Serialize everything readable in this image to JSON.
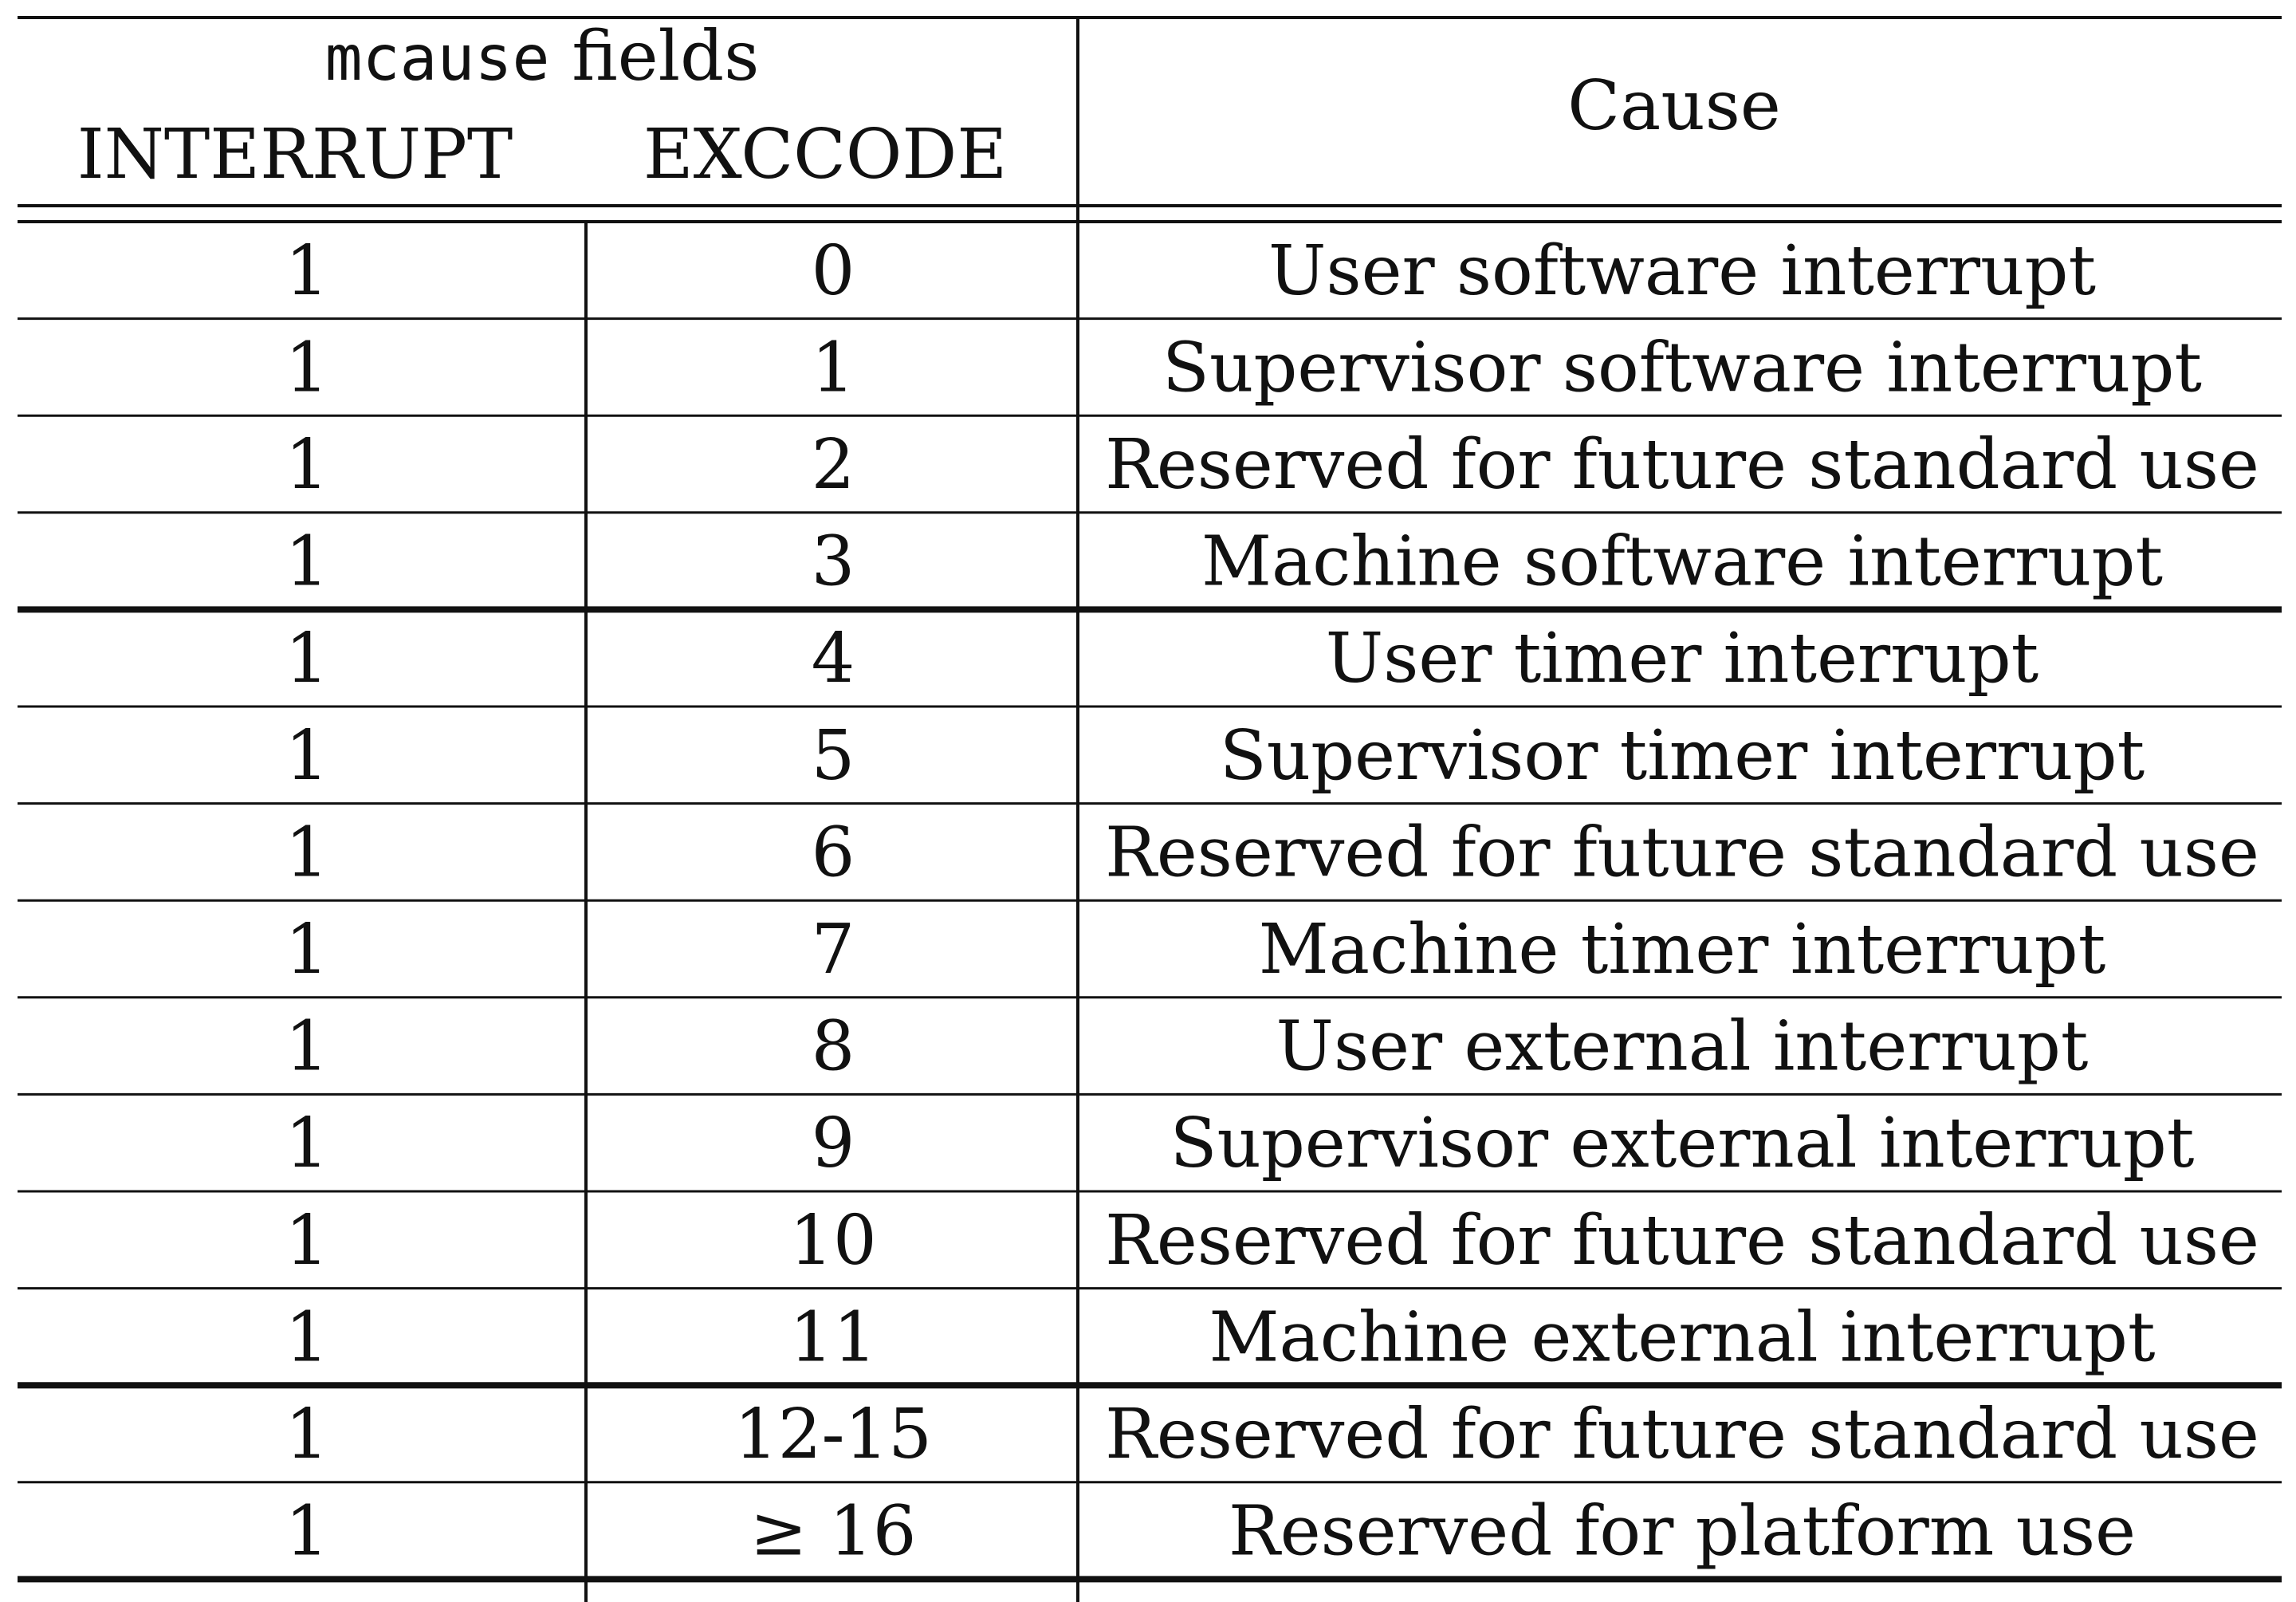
{
  "header": {
    "fields_code": "mcause",
    "fields_word": "fields",
    "col_interrupt": "INTERRUPT",
    "col_exccode": "EXCCODE",
    "col_cause": "Cause"
  },
  "rows": [
    {
      "interrupt": "1",
      "exccode": "0",
      "cause": "User software interrupt"
    },
    {
      "interrupt": "1",
      "exccode": "1",
      "cause": "Supervisor software interrupt"
    },
    {
      "interrupt": "1",
      "exccode": "2",
      "cause": "Reserved for future standard use"
    },
    {
      "interrupt": "1",
      "exccode": "3",
      "cause": "Machine software interrupt"
    },
    {
      "interrupt": "1",
      "exccode": "4",
      "cause": "User timer interrupt"
    },
    {
      "interrupt": "1",
      "exccode": "5",
      "cause": "Supervisor timer interrupt"
    },
    {
      "interrupt": "1",
      "exccode": "6",
      "cause": "Reserved for future standard use"
    },
    {
      "interrupt": "1",
      "exccode": "7",
      "cause": "Machine timer interrupt"
    },
    {
      "interrupt": "1",
      "exccode": "8",
      "cause": "User external interrupt"
    },
    {
      "interrupt": "1",
      "exccode": "9",
      "cause": "Supervisor external interrupt"
    },
    {
      "interrupt": "1",
      "exccode": "10",
      "cause": "Reserved for future standard use"
    },
    {
      "interrupt": "1",
      "exccode": "11",
      "cause": "Machine external interrupt"
    },
    {
      "interrupt": "1",
      "exccode": "12-15",
      "cause": "Reserved for future standard use"
    },
    {
      "interrupt": "1",
      "exccode": "≥ 16",
      "cause": "Reserved for platform use"
    }
  ]
}
